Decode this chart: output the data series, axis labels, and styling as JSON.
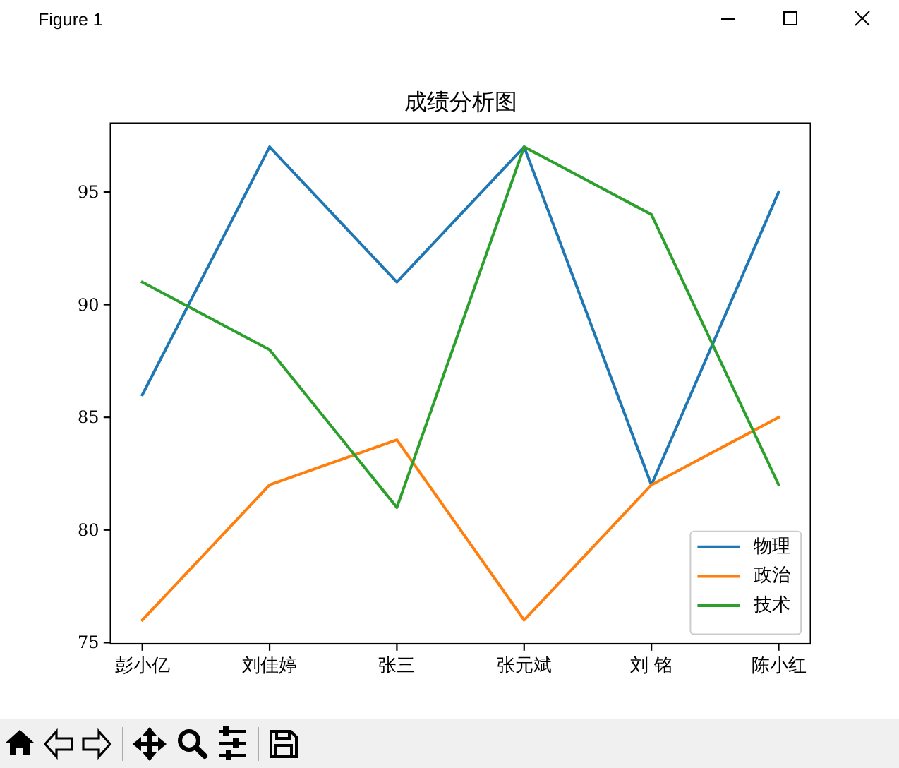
{
  "chart_data": {
    "type": "line",
    "title": "成绩分析图",
    "categories": [
      "彭小亿",
      "刘佳婷",
      "张三",
      "张元斌",
      "刘 铭",
      "陈小红"
    ],
    "series": [
      {
        "name": "物理",
        "color": "#1f77b4",
        "values": [
          86,
          97,
          91,
          97,
          82,
          95
        ]
      },
      {
        "name": "政治",
        "color": "#ff7f0e",
        "values": [
          76,
          82,
          84,
          76,
          82,
          85
        ]
      },
      {
        "name": "技术",
        "color": "#2ca02c",
        "values": [
          91,
          88,
          81,
          97,
          94,
          82
        ]
      }
    ],
    "ylim": [
      74.95,
      98.05
    ],
    "yticks": [
      75,
      80,
      85,
      90,
      95
    ],
    "legend": "bottom right",
    "annotations": [
      "Figure 1"
    ]
  }
}
